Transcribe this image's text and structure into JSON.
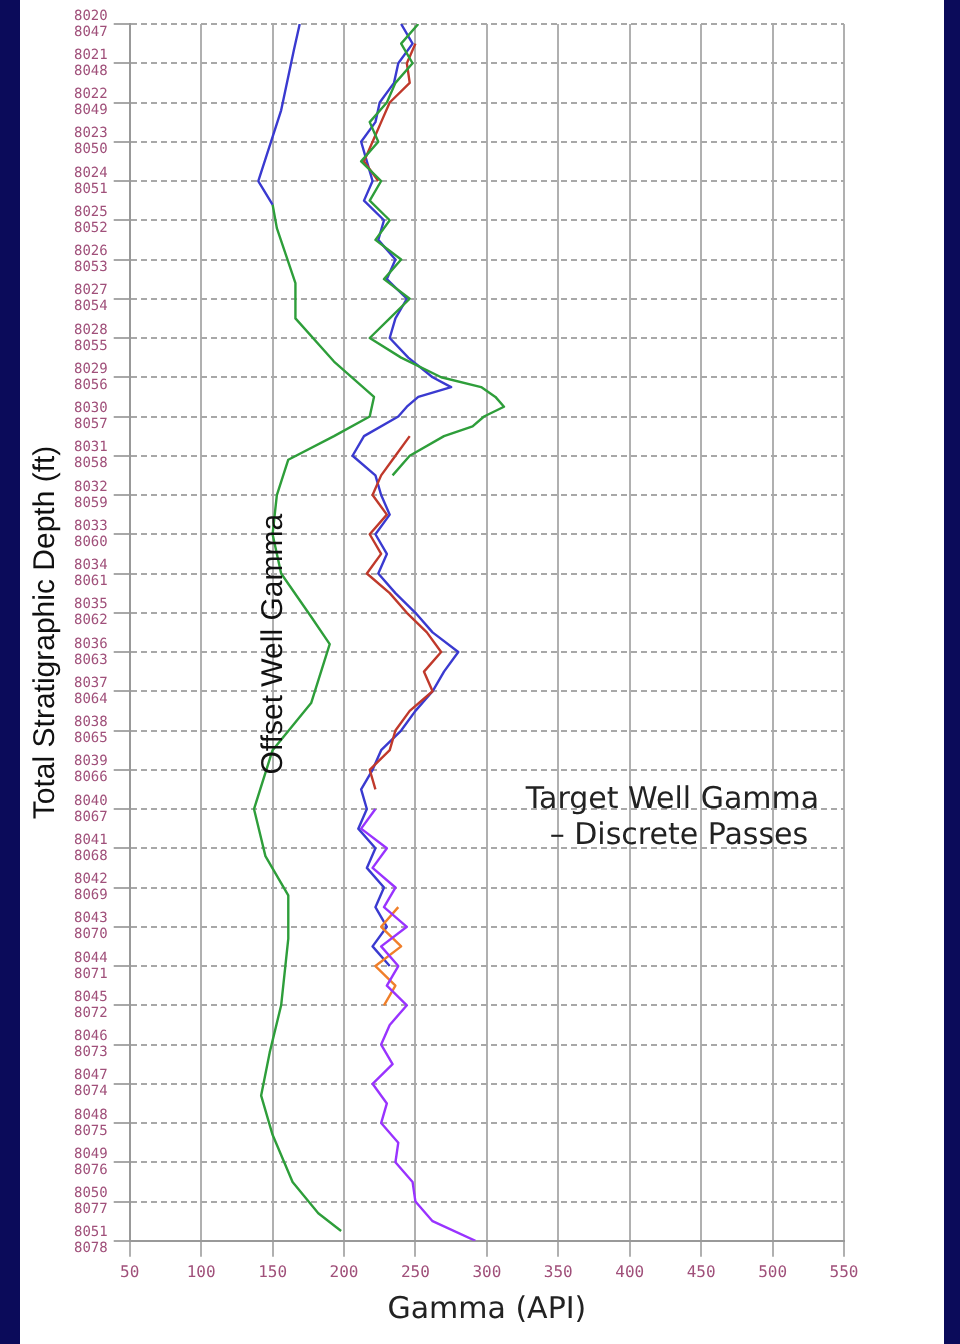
{
  "chart_data": {
    "type": "line",
    "xlabel": "Gamma (API)",
    "y2label": "Total Stratigraphic Depth (ft)",
    "annotations": [
      "Target Well Gamma – Discrete Passes"
    ],
    "xlim": [
      50,
      550
    ],
    "xticks": [
      50,
      100,
      150,
      200,
      250,
      300,
      350,
      400,
      450,
      500,
      550
    ],
    "ylim": [
      8051,
      8020
    ],
    "yticks": [
      8020,
      8021,
      8022,
      8023,
      8024,
      8025,
      8026,
      8027,
      8028,
      8029,
      8030,
      8031,
      8032,
      8033,
      8034,
      8035,
      8036,
      8037,
      8038,
      8039,
      8040,
      8041,
      8042,
      8043,
      8044,
      8045,
      8046,
      8047,
      8048,
      8049,
      8050,
      8051
    ],
    "y2lim": [
      8078,
      8047
    ],
    "y2ticks": [
      8047,
      8048,
      8049,
      8050,
      8051,
      8052,
      8053,
      8054,
      8055,
      8056,
      8057,
      8058,
      8059,
      8060,
      8061,
      8062,
      8063,
      8064,
      8065,
      8066,
      8067,
      8068,
      8069,
      8070,
      8071,
      8072,
      8073,
      8074,
      8075,
      8076,
      8077,
      8078
    ],
    "grid": true,
    "legend": false,
    "marker": "none",
    "series": [
      {
        "color": "#3a3ad0",
        "x": [
          169,
          165,
          156,
          140,
          150
        ],
        "values": [
          8020,
          8020.65,
          8022.2,
          8024,
          8024.6
        ]
      },
      {
        "name": "Offset Well Gamma",
        "color": "#2e9e3a",
        "x": [
          150,
          153,
          166,
          166,
          193,
          221,
          218,
          193,
          161,
          153,
          150,
          156,
          177,
          190,
          177,
          150,
          137,
          145,
          161,
          161,
          156,
          148,
          142,
          150,
          164,
          182,
          198
        ],
        "values": [
          8024.6,
          8025.2,
          8026.6,
          8027.5,
          8028.6,
          8029.5,
          8030,
          8030.5,
          8031.1,
          8032,
          8033,
          8034,
          8035.1,
          8035.8,
          8037.3,
          8038.5,
          8040,
          8041.2,
          8042.2,
          8043.3,
          8045,
          8046.2,
          8047.3,
          8048.3,
          8049.5,
          8050.3,
          8050.75
        ]
      },
      {
        "color": "#2e9e3a",
        "x": [
          252,
          240,
          248,
          236,
          230,
          218,
          224,
          212,
          226,
          218,
          232,
          222,
          240,
          228,
          246,
          232,
          218,
          240,
          268,
          296,
          306,
          312,
          298,
          290,
          270,
          246,
          234
        ],
        "values": [
          8020,
          8020.5,
          8021,
          8021.5,
          8022,
          8022.5,
          8023,
          8023.5,
          8024,
          8024.5,
          8025,
          8025.5,
          8026,
          8026.5,
          8027,
          8027.5,
          8028,
          8028.5,
          8029,
          8029.25,
          8029.5,
          8029.75,
          8030,
          8030.25,
          8030.5,
          8031,
          8031.5
        ]
      },
      {
        "color": "#c0392b",
        "x": [
          250,
          244,
          246,
          232,
          226,
          220,
          214,
          224
        ],
        "values": [
          8020.5,
          8021,
          8021.5,
          8022,
          8022.5,
          8023,
          8023.5,
          8024
        ]
      },
      {
        "color": "#c0392b",
        "x": [
          246,
          236,
          226,
          220,
          230,
          218,
          226,
          216,
          232,
          244,
          258,
          268,
          256,
          262,
          246,
          236,
          232,
          218,
          222
        ],
        "values": [
          8030.5,
          8031,
          8031.5,
          8032,
          8032.5,
          8033,
          8033.5,
          8034,
          8034.5,
          8035,
          8035.5,
          8036,
          8036.5,
          8037,
          8037.5,
          8038,
          8038.5,
          8039,
          8039.5
        ]
      },
      {
        "color": "#9933ff",
        "x": [
          222,
          212,
          230,
          220,
          236,
          228,
          244,
          226,
          238,
          230,
          244,
          232,
          226,
          234,
          220,
          230,
          226,
          238,
          236,
          248,
          250,
          262,
          292
        ],
        "values": [
          8040,
          8040.5,
          8041,
          8041.5,
          8042,
          8042.5,
          8043,
          8043.5,
          8044,
          8044.5,
          8045,
          8045.5,
          8046,
          8046.5,
          8047,
          8047.5,
          8048,
          8048.5,
          8049,
          8049.5,
          8050,
          8050.5,
          8051
        ]
      },
      {
        "color": "#f07f2a",
        "x": [
          238,
          226,
          240,
          222,
          236,
          228
        ],
        "values": [
          8042.5,
          8043,
          8043.5,
          8044,
          8044.5,
          8045
        ]
      },
      {
        "color": "#3a3ad0",
        "x": [
          240,
          248,
          238,
          235,
          225,
          222,
          212,
          216,
          220,
          214,
          228,
          224,
          236,
          230,
          244,
          236,
          232,
          245,
          262,
          275,
          252,
          244,
          238,
          214,
          206,
          222,
          226,
          232,
          222,
          230,
          224,
          236,
          250,
          262,
          280,
          270,
          262,
          250,
          240,
          226,
          220,
          212,
          216,
          210,
          222,
          216,
          228,
          222,
          230,
          220,
          232
        ],
        "values": [
          8020,
          8020.5,
          8021,
          8021.5,
          8022,
          8022.5,
          8023,
          8023.5,
          8024,
          8024.5,
          8025,
          8025.5,
          8026,
          8026.5,
          8027,
          8027.5,
          8028,
          8028.5,
          8029,
          8029.25,
          8029.5,
          8029.75,
          8030,
          8030.5,
          8031,
          8031.5,
          8032,
          8032.5,
          8033,
          8033.5,
          8034,
          8034.5,
          8035,
          8035.5,
          8036,
          8036.5,
          8037,
          8037.5,
          8038,
          8038.5,
          8039,
          8039.5,
          8040,
          8040.5,
          8041,
          8041.5,
          8042,
          8042.5,
          8043,
          8043.5,
          8044
        ]
      }
    ]
  }
}
